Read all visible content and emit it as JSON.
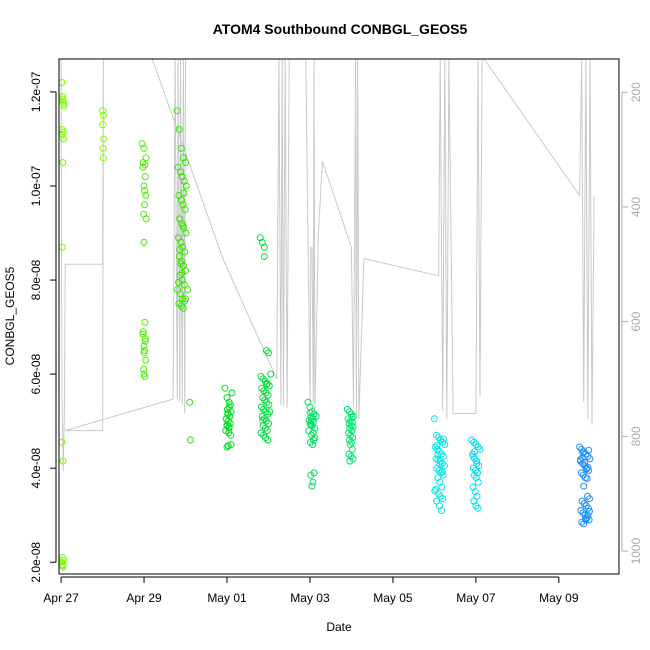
{
  "chart_data": {
    "type": "scatter",
    "title": "ATOM4 Southbound CONBGL_GEOS5",
    "xlabel": "Date",
    "ylabel": "CONBGL_GEOS5",
    "xlim": [
      -0.05,
      13.45
    ],
    "ylim": [
      1.75e-08,
      1.27e-07
    ],
    "x_ticks": [
      {
        "day": 0,
        "label": "Apr 27"
      },
      {
        "day": 2,
        "label": "Apr 29"
      },
      {
        "day": 4,
        "label": "May 01"
      },
      {
        "day": 6,
        "label": "May 03"
      },
      {
        "day": 8,
        "label": "May 05"
      },
      {
        "day": 10,
        "label": "May 07"
      },
      {
        "day": 12,
        "label": "May 09"
      }
    ],
    "y_ticks": [
      {
        "value": 2e-08,
        "label": "2.0e-08"
      },
      {
        "value": 4e-08,
        "label": "4.0e-08"
      },
      {
        "value": 6e-08,
        "label": "6.0e-08"
      },
      {
        "value": 8e-08,
        "label": "8.0e-08"
      },
      {
        "value": 1e-07,
        "label": "1.0e-07"
      },
      {
        "value": 1.2e-07,
        "label": "1.2e-07"
      }
    ],
    "right_axis": {
      "label": "",
      "lim": [
        1040,
        142
      ],
      "ticks": [
        {
          "value": 200,
          "label": "200"
        },
        {
          "value": 400,
          "label": "400"
        },
        {
          "value": 600,
          "label": "600"
        },
        {
          "value": 800,
          "label": "800"
        },
        {
          "value": 1000,
          "label": "1000"
        }
      ]
    },
    "pressure_line_color": "#c8c8c8",
    "pressure_trace": [
      [
        0.0,
        142
      ],
      [
        0.02,
        700
      ],
      [
        0.05,
        860
      ],
      [
        0.08,
        760
      ],
      [
        0.1,
        500
      ],
      [
        1.0,
        500
      ],
      [
        1.02,
        142
      ],
      [
        1.0,
        790
      ],
      [
        0.1,
        790
      ],
      [
        2.7,
        735
      ],
      [
        2.75,
        142
      ],
      [
        2.8,
        735
      ],
      [
        2.82,
        142
      ],
      [
        2.86,
        740
      ],
      [
        2.88,
        142
      ],
      [
        2.92,
        745
      ],
      [
        2.95,
        142
      ],
      [
        2.98,
        760
      ],
      [
        3.0,
        142
      ],
      [
        2.2,
        142
      ],
      [
        3.9,
        490
      ],
      [
        5.2,
        700
      ],
      [
        5.25,
        142
      ],
      [
        5.3,
        745
      ],
      [
        5.33,
        142
      ],
      [
        5.36,
        745
      ],
      [
        5.4,
        142
      ],
      [
        5.45,
        750
      ],
      [
        5.5,
        142
      ],
      [
        5.9,
        142
      ],
      [
        6.0,
        740
      ],
      [
        6.02,
        470
      ],
      [
        6.05,
        470
      ],
      [
        6.08,
        740
      ],
      [
        6.1,
        142
      ],
      [
        6.12,
        760
      ],
      [
        6.2,
        450
      ],
      [
        6.3,
        320
      ],
      [
        7.0,
        470
      ],
      [
        7.05,
        750
      ],
      [
        7.1,
        142
      ],
      [
        7.12,
        760
      ],
      [
        7.15,
        142
      ],
      [
        7.18,
        770
      ],
      [
        7.3,
        490
      ],
      [
        9.1,
        520
      ],
      [
        9.14,
        142
      ],
      [
        9.2,
        755
      ],
      [
        9.25,
        142
      ],
      [
        9.3,
        770
      ],
      [
        9.35,
        142
      ],
      [
        9.45,
        760
      ],
      [
        10.0,
        760
      ],
      [
        10.05,
        142
      ],
      [
        10.1,
        730
      ],
      [
        10.15,
        142
      ],
      [
        10.2,
        142
      ],
      [
        12.5,
        380
      ],
      [
        12.55,
        142
      ],
      [
        12.6,
        740
      ],
      [
        12.65,
        142
      ],
      [
        12.7,
        770
      ],
      [
        12.75,
        142
      ],
      [
        12.8,
        780
      ],
      [
        12.85,
        380
      ]
    ],
    "series": [
      {
        "name": "",
        "color": "#7cfc00",
        "x": [
          0.02,
          0.03,
          0.04,
          0.05,
          0.06,
          0.07,
          0.02,
          0.03,
          0.05,
          0.06,
          0.04,
          0.03,
          0.02,
          0.05,
          0.04,
          0.06,
          0.03,
          0.04,
          0.05,
          0.03,
          1.0,
          1.02,
          1.0,
          1.03,
          1.01,
          1.02
        ],
        "y": [
          1.22e-07,
          1.19e-07,
          1.185e-07,
          1.18e-07,
          1.175e-07,
          1.17e-07,
          1.12e-07,
          1.11e-07,
          1.115e-07,
          1.1e-07,
          1.05e-07,
          8.7e-08,
          4.55e-08,
          4.15e-08,
          2.1e-08,
          2.05e-08,
          2e-08,
          1.95e-08,
          1.9e-08,
          1.92e-08,
          1.16e-07,
          1.15e-07,
          1.13e-07,
          1.1e-07,
          1.08e-07,
          1.06e-07
        ]
      },
      {
        "name": "",
        "color": "#4cf000",
        "x": [
          1.95,
          2.0,
          2.05,
          1.98,
          2.02,
          1.97,
          2.03,
          2.0,
          2.04,
          2.01,
          1.99,
          2.05,
          2.0,
          2.02,
          1.98,
          2.03,
          2.0,
          2.01,
          2.04,
          1.99,
          2.0,
          2.02,
          1.97,
          2.03,
          2.0,
          2.01
        ],
        "y": [
          1.09e-07,
          1.08e-07,
          1.06e-07,
          1.05e-07,
          1.045e-07,
          1.04e-07,
          1.02e-07,
          1e-07,
          9.8e-08,
          9.6e-08,
          9.4e-08,
          9.3e-08,
          8.8e-08,
          7.1e-08,
          6.9e-08,
          6.7e-08,
          6.6e-08,
          6.5e-08,
          6.3e-08,
          6.1e-08,
          6e-08,
          5.95e-08,
          6.85e-08,
          6.75e-08,
          6.45e-08,
          9.9e-08
        ]
      },
      {
        "name": "",
        "color": "#33e800",
        "x": [
          2.8,
          2.85,
          2.9,
          2.95,
          3.0,
          2.82,
          2.88,
          2.92,
          2.97,
          3.02,
          2.84,
          2.9,
          2.94,
          2.99,
          2.86,
          2.91,
          2.96,
          3.01,
          2.83,
          2.89,
          2.93,
          2.98,
          2.85,
          2.9,
          2.95,
          3.0,
          2.87,
          2.92,
          2.97,
          2.81,
          2.88,
          2.93,
          2.98,
          2.84,
          2.9,
          2.95,
          3.0,
          3.05,
          2.86,
          2.91,
          2.96,
          3.1,
          3.12,
          2.83,
          2.89,
          2.94
        ],
        "y": [
          1.16e-07,
          1.12e-07,
          1.08e-07,
          1.06e-07,
          1.05e-07,
          1.04e-07,
          1.03e-07,
          1.02e-07,
          1.01e-07,
          1e-07,
          9.8e-08,
          9.7e-08,
          9.6e-08,
          9.5e-08,
          9.3e-08,
          9.2e-08,
          9.1e-08,
          9e-08,
          8.9e-08,
          8.8e-08,
          8.7e-08,
          8.6e-08,
          8.5e-08,
          8.4e-08,
          8.3e-08,
          8.2e-08,
          8.1e-08,
          8e-08,
          7.9e-08,
          7.8e-08,
          7.7e-08,
          7.6e-08,
          7.55e-08,
          7.5e-08,
          7.45e-08,
          7.4e-08,
          7.6e-08,
          7.8e-08,
          8.65e-08,
          8.15e-08,
          9.85e-08,
          5.4e-08,
          4.6e-08,
          7.95e-08,
          8.35e-08,
          9.15e-08
        ]
      },
      {
        "name": "",
        "color": "#00e020",
        "x": [
          3.95,
          4.0,
          4.05,
          4.1,
          4.02,
          4.07,
          3.98,
          4.03,
          4.08,
          4.0,
          4.05,
          3.97,
          4.04,
          4.09,
          4.01,
          4.06,
          4.0,
          4.1,
          4.03,
          4.12,
          4.08,
          4.0,
          4.05,
          4.02
        ],
        "y": [
          5.7e-08,
          5.5e-08,
          5.4e-08,
          5.2e-08,
          5.15e-08,
          5.1e-08,
          5.05e-08,
          5e-08,
          4.95e-08,
          4.9e-08,
          4.85e-08,
          4.8e-08,
          4.75e-08,
          4.7e-08,
          5.25e-08,
          5.3e-08,
          4.45e-08,
          4.5e-08,
          4.48e-08,
          5.6e-08,
          5.35e-08,
          4.92e-08,
          4.88e-08,
          5.18e-08
        ]
      },
      {
        "name": "",
        "color": "#00e040",
        "x": [
          4.8,
          4.85,
          4.9,
          4.95,
          5.0,
          5.05,
          4.82,
          4.87,
          4.92,
          4.97,
          5.02,
          4.84,
          4.89,
          4.94,
          4.99,
          4.86,
          4.91,
          4.96,
          5.01,
          4.83,
          4.88,
          4.93,
          4.98,
          4.85,
          4.9,
          4.95,
          5.0,
          4.87,
          4.92,
          4.97,
          4.82,
          4.88,
          4.93,
          4.98,
          5.03,
          4.9,
          4.95,
          4.86
        ],
        "y": [
          8.9e-08,
          8.8e-08,
          8.5e-08,
          6.5e-08,
          6.45e-08,
          6e-08,
          5.95e-08,
          5.9e-08,
          5.85e-08,
          5.8e-08,
          5.75e-08,
          5.7e-08,
          5.65e-08,
          5.6e-08,
          5.55e-08,
          5.5e-08,
          5.45e-08,
          5.4e-08,
          5.35e-08,
          5.3e-08,
          5.25e-08,
          5.2e-08,
          5.15e-08,
          5.1e-08,
          5.05e-08,
          5e-08,
          4.95e-08,
          4.9e-08,
          4.85e-08,
          4.8e-08,
          4.75e-08,
          4.7e-08,
          4.65e-08,
          4.6e-08,
          5.2e-08,
          8.7e-08,
          5.78e-08,
          5.02e-08
        ]
      },
      {
        "name": "",
        "color": "#00e060",
        "x": [
          5.95,
          6.0,
          6.05,
          6.1,
          6.15,
          6.02,
          6.07,
          5.98,
          6.03,
          6.08,
          6.0,
          6.05,
          6.12,
          5.97,
          6.04,
          6.09,
          6.01,
          6.06,
          6.1,
          6.02,
          6.07,
          6.05,
          6.12,
          6.0,
          6.08,
          6.03
        ],
        "y": [
          5.4e-08,
          5.3e-08,
          5.2e-08,
          5.15e-08,
          5.1e-08,
          5.08e-08,
          5.05e-08,
          5.02e-08,
          5e-08,
          4.98e-08,
          4.95e-08,
          4.9e-08,
          4.85e-08,
          4.8e-08,
          4.7e-08,
          4.6e-08,
          4.55e-08,
          4.5e-08,
          3.9e-08,
          3.85e-08,
          3.7e-08,
          3.62e-08,
          4.65e-08,
          5.18e-08,
          4.75e-08,
          4.92e-08
        ]
      },
      {
        "name": "",
        "color": "#00e870",
        "x": [
          6.9,
          6.95,
          7.0,
          7.05,
          6.92,
          6.97,
          7.02,
          6.94,
          6.99,
          7.04,
          6.96,
          7.01,
          6.93,
          6.98,
          7.03,
          6.95,
          7.0,
          6.97,
          7.02,
          6.94,
          6.99,
          7.04,
          6.96,
          7.01
        ],
        "y": [
          5.25e-08,
          5.2e-08,
          5.15e-08,
          5.1e-08,
          5.05e-08,
          5e-08,
          4.98e-08,
          4.95e-08,
          4.9e-08,
          4.88e-08,
          4.85e-08,
          4.8e-08,
          4.75e-08,
          4.7e-08,
          4.65e-08,
          4.6e-08,
          4.55e-08,
          4.5e-08,
          4.4e-08,
          4.3e-08,
          4.25e-08,
          4.2e-08,
          4.15e-08,
          5.08e-08
        ]
      },
      {
        "name": "",
        "color": "#00e8e8",
        "x": [
          9.0,
          9.05,
          9.1,
          9.15,
          9.2,
          9.25,
          9.02,
          9.07,
          9.12,
          9.17,
          9.22,
          9.04,
          9.09,
          9.14,
          9.19,
          9.24,
          9.06,
          9.11,
          9.16,
          9.21,
          9.08,
          9.13,
          9.18,
          9.03,
          9.1,
          9.15,
          9.2,
          9.05,
          9.12,
          9.17,
          9.22,
          9.08,
          9.14,
          9.19,
          9.01,
          9.06
        ],
        "y": [
          5.05e-08,
          4.7e-08,
          4.65e-08,
          4.6e-08,
          4.55e-08,
          4.5e-08,
          4.45e-08,
          4.4e-08,
          4.35e-08,
          4.3e-08,
          4.25e-08,
          4.2e-08,
          4.18e-08,
          4.15e-08,
          4.1e-08,
          4.05e-08,
          4e-08,
          3.95e-08,
          3.9e-08,
          3.85e-08,
          3.8e-08,
          3.7e-08,
          3.6e-08,
          3.55e-08,
          3.45e-08,
          3.4e-08,
          3.35e-08,
          3.3e-08,
          3.2e-08,
          3.1e-08,
          4.62e-08,
          4.28e-08,
          4.08e-08,
          3.92e-08,
          3.52e-08,
          4.48e-08
        ]
      },
      {
        "name": "",
        "color": "#00e0f0",
        "x": [
          9.9,
          9.95,
          10.0,
          10.05,
          10.1,
          9.92,
          9.97,
          10.02,
          10.07,
          9.94,
          9.99,
          10.04,
          9.96,
          10.01,
          10.06,
          9.93,
          9.98,
          10.03,
          9.95,
          10.0,
          10.05,
          9.97,
          10.02,
          9.94
        ],
        "y": [
          4.6e-08,
          4.55e-08,
          4.5e-08,
          4.45e-08,
          4.4e-08,
          4.3e-08,
          4.2e-08,
          4.1e-08,
          4.05e-08,
          4e-08,
          3.95e-08,
          3.9e-08,
          3.85e-08,
          3.8e-08,
          3.7e-08,
          3.6e-08,
          3.5e-08,
          3.4e-08,
          3.3e-08,
          3.2e-08,
          3.15e-08,
          4.35e-08,
          4.15e-08,
          4.25e-08
        ]
      },
      {
        "name": "",
        "color": "#1e90ff",
        "x": [
          12.5,
          12.55,
          12.6,
          12.65,
          12.7,
          12.75,
          12.52,
          12.57,
          12.62,
          12.67,
          12.72,
          12.54,
          12.59,
          12.64,
          12.69,
          12.74,
          12.56,
          12.61,
          12.66,
          12.71,
          12.53,
          12.58,
          12.63,
          12.68,
          12.73,
          12.55,
          12.6,
          12.65,
          12.7,
          12.57,
          12.62,
          12.67,
          12.72,
          12.52,
          12.6,
          12.68,
          12.74,
          12.58,
          12.64,
          12.7
        ],
        "y": [
          4.45e-08,
          4.4e-08,
          4.35e-08,
          4.3e-08,
          4.25e-08,
          4.2e-08,
          4.15e-08,
          4.1e-08,
          4.05e-08,
          4e-08,
          3.95e-08,
          3.9e-08,
          3.85e-08,
          3.8e-08,
          3.4e-08,
          3.35e-08,
          3.3e-08,
          3.25e-08,
          3.2e-08,
          3.15e-08,
          3.1e-08,
          3.05e-08,
          3e-08,
          2.95e-08,
          2.9e-08,
          2.85e-08,
          2.82e-08,
          2.9e-08,
          3e-08,
          4.22e-08,
          4.12e-08,
          3.98e-08,
          4.38e-08,
          4.18e-08,
          3.62e-08,
          3.78e-08,
          3.08e-08,
          4.32e-08,
          2.92e-08,
          4.02e-08
        ]
      }
    ]
  }
}
